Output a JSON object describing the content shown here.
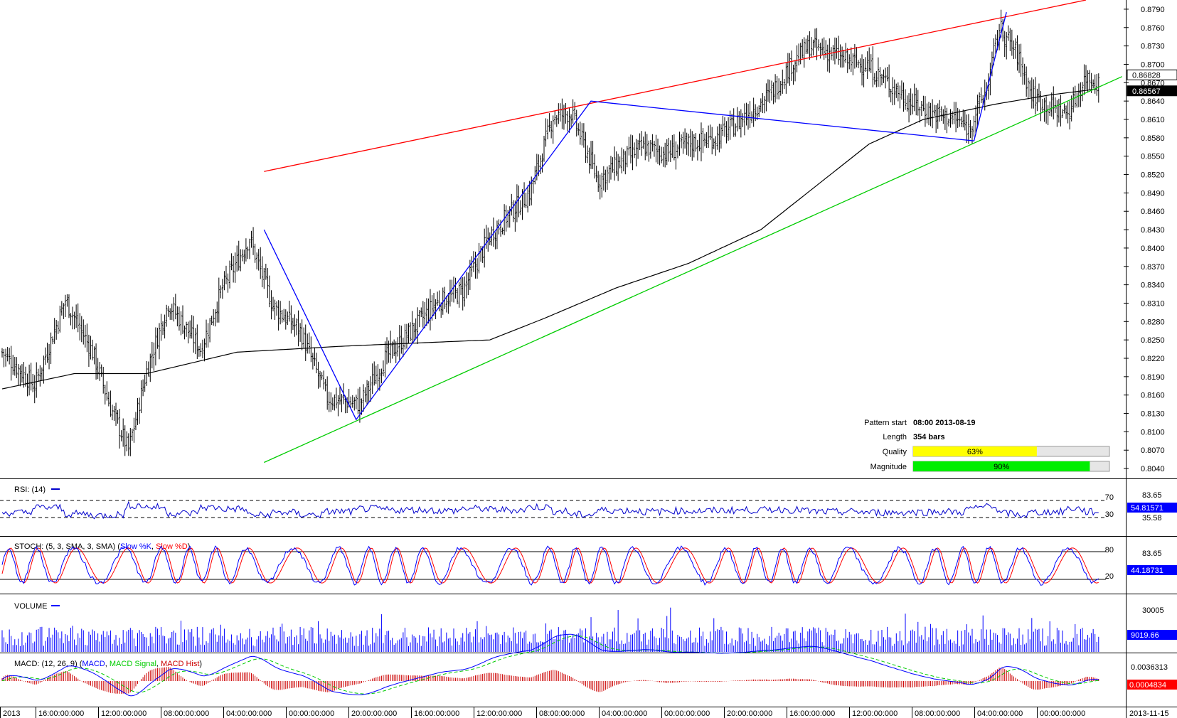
{
  "chart_data": {
    "type": "candlestick",
    "price_panel": {
      "y_ticks": [
        "0.8790",
        "0.8760",
        "0.8730",
        "0.8700",
        "0.8670",
        "0.8640",
        "0.8610",
        "0.8580",
        "0.8550",
        "0.8520",
        "0.8490",
        "0.8460",
        "0.8430",
        "0.8400",
        "0.8370",
        "0.8340",
        "0.8310",
        "0.8280",
        "0.8250",
        "0.8220",
        "0.8190",
        "0.8160",
        "0.8130",
        "0.8100",
        "0.8070",
        "0.8040"
      ],
      "ylim": [
        0.8025,
        0.8805
      ],
      "price_tags": [
        {
          "value": "0.86828",
          "bg": "#ffffff",
          "fg": "#000000"
        },
        {
          "value": "0.86567",
          "bg": "#000000",
          "fg": "#ffffff"
        }
      ],
      "anchor_points": [
        {
          "bar": 0,
          "value": 0.823
        },
        {
          "bar": 18,
          "value": 0.8175
        },
        {
          "bar": 35,
          "value": 0.8315
        },
        {
          "bar": 50,
          "value": 0.823
        },
        {
          "bar": 60,
          "value": 0.814
        },
        {
          "bar": 70,
          "value": 0.807
        },
        {
          "bar": 80,
          "value": 0.82
        },
        {
          "bar": 92,
          "value": 0.831
        },
        {
          "bar": 110,
          "value": 0.8235
        },
        {
          "bar": 122,
          "value": 0.8335
        },
        {
          "bar": 137,
          "value": 0.8415
        },
        {
          "bar": 150,
          "value": 0.8305
        },
        {
          "bar": 165,
          "value": 0.8265
        },
        {
          "bar": 180,
          "value": 0.8155
        },
        {
          "bar": 198,
          "value": 0.8145
        },
        {
          "bar": 212,
          "value": 0.822
        },
        {
          "bar": 225,
          "value": 0.826
        },
        {
          "bar": 240,
          "value": 0.831
        },
        {
          "bar": 255,
          "value": 0.833
        },
        {
          "bar": 270,
          "value": 0.842
        },
        {
          "bar": 282,
          "value": 0.846
        },
        {
          "bar": 292,
          "value": 0.849
        },
        {
          "bar": 305,
          "value": 0.8615
        },
        {
          "bar": 315,
          "value": 0.862
        },
        {
          "bar": 330,
          "value": 0.851
        },
        {
          "bar": 342,
          "value": 0.854
        },
        {
          "bar": 355,
          "value": 0.8565
        },
        {
          "bar": 368,
          "value": 0.8555
        },
        {
          "bar": 380,
          "value": 0.857
        },
        {
          "bar": 395,
          "value": 0.858
        },
        {
          "bar": 405,
          "value": 0.86
        },
        {
          "bar": 415,
          "value": 0.8625
        },
        {
          "bar": 425,
          "value": 0.865
        },
        {
          "bar": 437,
          "value": 0.87
        },
        {
          "bar": 447,
          "value": 0.873
        },
        {
          "bar": 458,
          "value": 0.872
        },
        {
          "bar": 468,
          "value": 0.8705
        },
        {
          "bar": 478,
          "value": 0.87
        },
        {
          "bar": 490,
          "value": 0.867
        },
        {
          "bar": 502,
          "value": 0.864
        },
        {
          "bar": 515,
          "value": 0.862
        },
        {
          "bar": 528,
          "value": 0.861
        },
        {
          "bar": 535,
          "value": 0.8595
        },
        {
          "bar": 545,
          "value": 0.866
        },
        {
          "bar": 552,
          "value": 0.876
        },
        {
          "bar": 562,
          "value": 0.8715
        },
        {
          "bar": 570,
          "value": 0.865
        },
        {
          "bar": 580,
          "value": 0.863
        },
        {
          "bar": 590,
          "value": 0.862
        },
        {
          "bar": 600,
          "value": 0.868
        },
        {
          "bar": 607,
          "value": 0.867
        }
      ],
      "moving_average": [
        {
          "bar": 0,
          "value": 0.817
        },
        {
          "bar": 40,
          "value": 0.8195
        },
        {
          "bar": 80,
          "value": 0.8195
        },
        {
          "bar": 130,
          "value": 0.823
        },
        {
          "bar": 190,
          "value": 0.824
        },
        {
          "bar": 270,
          "value": 0.825
        },
        {
          "bar": 300,
          "value": 0.8285
        },
        {
          "bar": 340,
          "value": 0.8335
        },
        {
          "bar": 380,
          "value": 0.8375
        },
        {
          "bar": 420,
          "value": 0.843
        },
        {
          "bar": 450,
          "value": 0.85
        },
        {
          "bar": 480,
          "value": 0.857
        },
        {
          "bar": 510,
          "value": 0.861
        },
        {
          "bar": 550,
          "value": 0.8635
        },
        {
          "bar": 580,
          "value": 0.865
        },
        {
          "bar": 607,
          "value": 0.866
        }
      ],
      "overlays": [
        {
          "color": "#ff0000",
          "points": [
            {
              "bar": 145,
              "value": 0.8525
            },
            {
              "bar": 600,
              "value": 0.8805
            }
          ]
        },
        {
          "color": "#00cc00",
          "points": [
            {
              "bar": 145,
              "value": 0.805
            },
            {
              "bar": 620,
              "value": 0.868
            }
          ]
        },
        {
          "color": "#0000ff",
          "points": [
            {
              "bar": 145,
              "value": 0.843
            },
            {
              "bar": 196,
              "value": 0.812
            },
            {
              "bar": 326,
              "value": 0.864
            },
            {
              "bar": 538,
              "value": 0.8575
            },
            {
              "bar": 556,
              "value": 0.8785
            }
          ]
        }
      ]
    },
    "pattern_info": {
      "start_label": "Pattern start",
      "start_value": "08:00 2013-08-19",
      "length_label": "Length",
      "length_value": "354 bars",
      "quality_label": "Quality",
      "quality_text": "63%",
      "quality": 0.63,
      "quality_color": "#ffff00",
      "magnitude_label": "Magnitude",
      "magnitude_text": "90%",
      "magnitude": 0.9,
      "magnitude_color": "#00ee00"
    },
    "rsi": {
      "label": "RSI: (14)",
      "levels": [
        "70",
        "30"
      ],
      "scale_labels": [
        "83.65",
        "35.58"
      ],
      "current": "54.81571",
      "ylim": [
        20,
        90
      ]
    },
    "stoch": {
      "label_prefix": "STOCH: (5, 3, SMA, 3, SMA) (",
      "k_label": "Slow %K",
      "d_label": "Slow %D",
      "label_suffix": ")",
      "levels": [
        "80",
        "20"
      ],
      "scale_label": "83.65",
      "current": "44.18731",
      "ylim": [
        0,
        100
      ]
    },
    "volume": {
      "label": "VOLUME",
      "scale_label": "30005",
      "current": "9019.66",
      "ylim": [
        0,
        30005
      ]
    },
    "macd": {
      "label_prefix": "MACD: (12, 26, 9) (",
      "macd_label": "MACD",
      "signal_label": "MACD Signal",
      "hist_label": "MACD Hist",
      "label_suffix": ")",
      "scale_label": "0.0036313",
      "current": "0.0004834"
    },
    "x_labels": [
      "2013",
      "16:00:00:000",
      "12:00:00:000",
      "08:00:00:000",
      "04:00:00:000",
      "00:00:00:000",
      "20:00:00:000",
      "16:00:00:000",
      "12:00:00:000",
      "08:00:00:000",
      "04:00:00:000",
      "00:00:00:000",
      "20:00:00:000",
      "16:00:00:000",
      "12:00:00:000",
      "08:00:00:000",
      "04:00:00:000",
      "00:00:00:000"
    ],
    "x_end_label": "2013-11-15",
    "colors": {
      "candle": "#000000",
      "ma": "#000000",
      "rsi": "#0000cc",
      "stoch_k": "#0000ff",
      "stoch_d": "#ff0000",
      "volume": "#0000ff",
      "macd": "#0000ff",
      "signal": "#00cc00",
      "hist": "#cc0000"
    }
  }
}
